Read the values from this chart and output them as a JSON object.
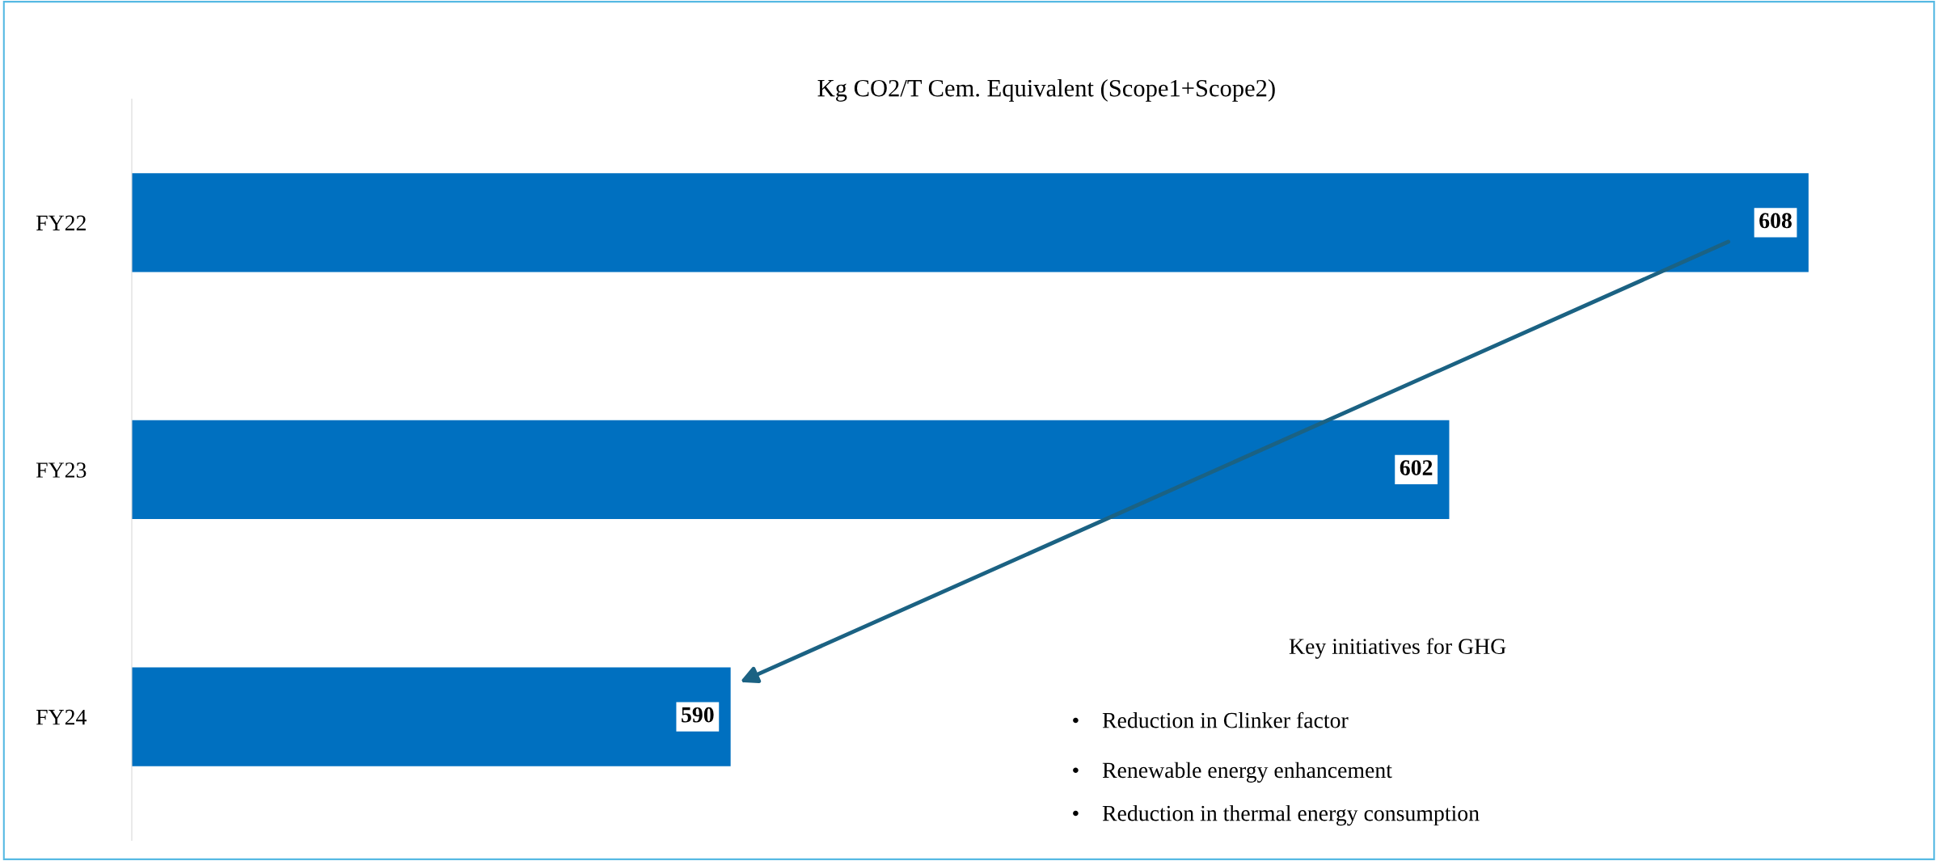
{
  "chart_data": {
    "type": "bar",
    "orientation": "horizontal",
    "title": "Kg CO2/T Cem. Equivalent (Scope1+Scope2)",
    "categories": [
      "FY22",
      "FY23",
      "FY24"
    ],
    "values": [
      608,
      602,
      590
    ],
    "color": "#0070c0",
    "xlim": [
      580,
      610
    ],
    "data_labels": true,
    "tick_labels": "y",
    "grid": false,
    "legend": false,
    "annotations": [
      "Key initiatives for GHG",
      "•    Reduction in Clinker factor",
      "•    Renewable energy enhancement",
      "•    Reduction in thermal energy consumption"
    ]
  }
}
